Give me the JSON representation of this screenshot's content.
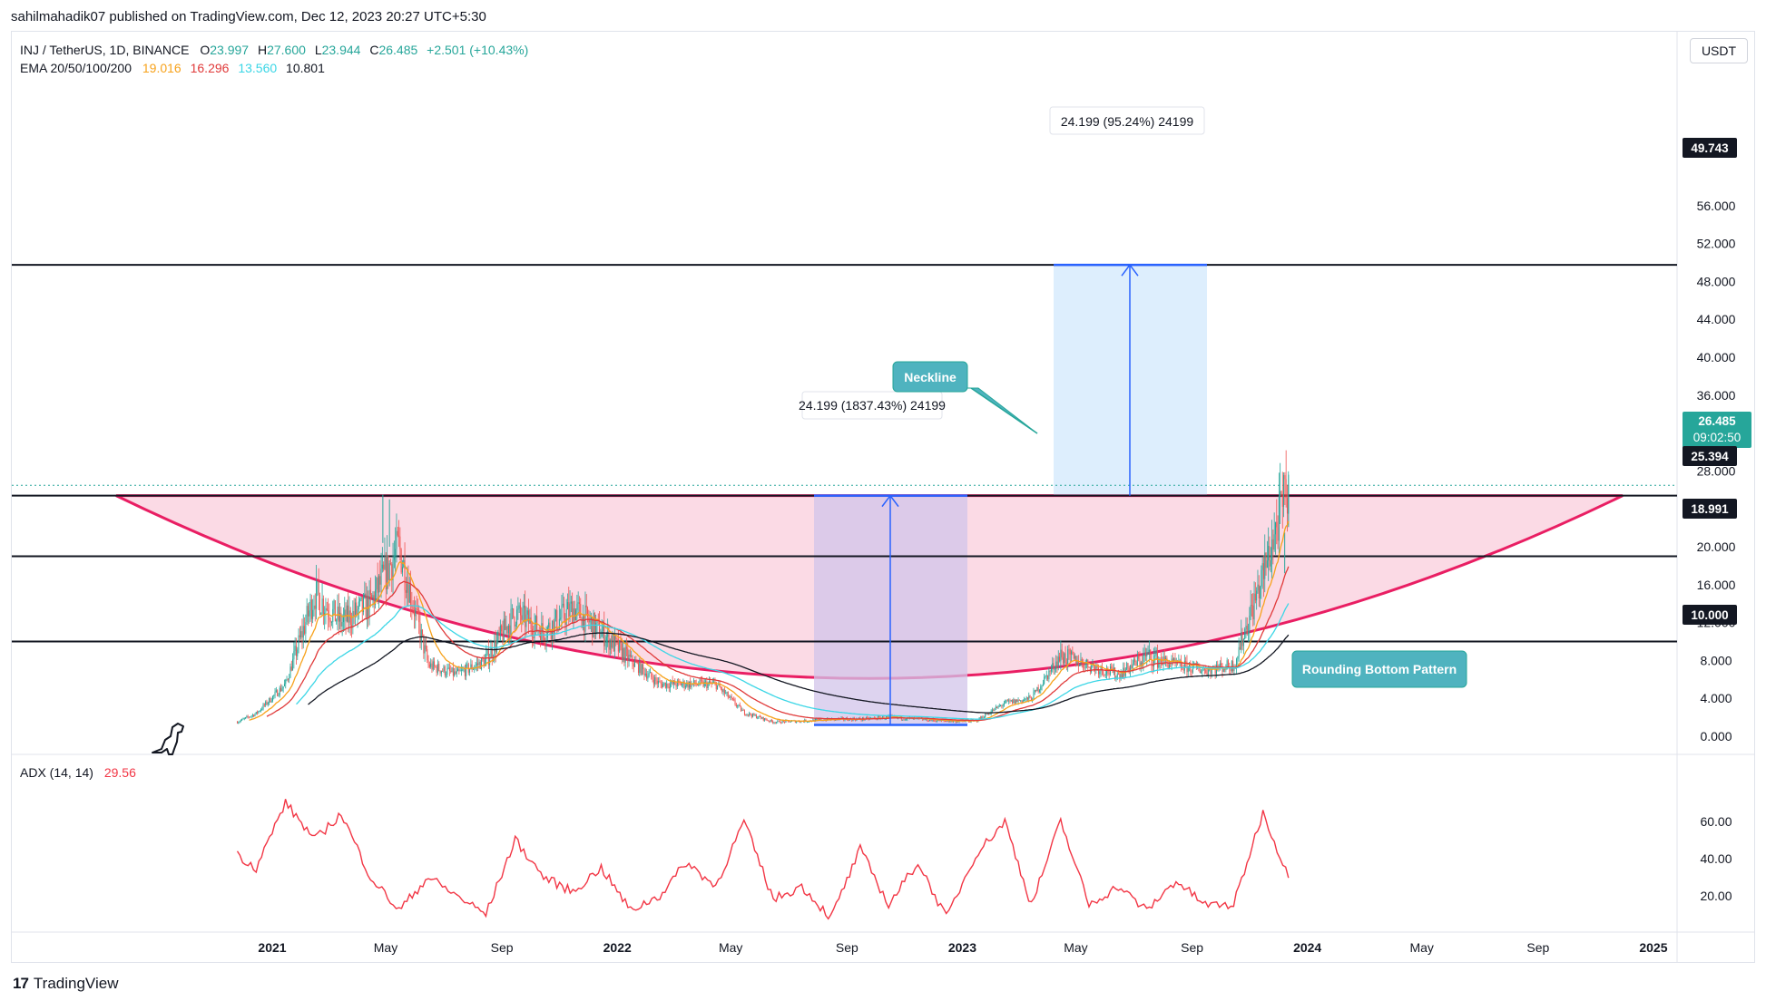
{
  "header": {
    "published_line": "sahilmahadik07 published on TradingView.com, Dec 12, 2023 20:27 UTC+5:30"
  },
  "legend": {
    "symbol": "INJ / TetherUS, 1D, BINANCE",
    "open_label": "O",
    "open": "23.997",
    "high_label": "H",
    "high": "27.600",
    "low_label": "L",
    "low": "23.944",
    "close_label": "C",
    "close": "26.485",
    "change": "+2.501 (+10.43%)",
    "ema_label": "EMA 20/50/100/200",
    "ema20": "19.016",
    "ema50": "16.296",
    "ema100": "13.560",
    "ema200": "10.801",
    "adx_label": "ADX (14, 14)",
    "adx_value": "29.56"
  },
  "currency_button": "USDT",
  "footer": {
    "brand": "TradingView"
  },
  "colors": {
    "bull": "#26a69a",
    "bear": "#ef5350",
    "ema20": "#f7a21b",
    "ema50": "#e03a3a",
    "ema100": "#3bd6e6",
    "ema200": "#131722",
    "adx": "#f23645",
    "pattern_fill": "#f8bbd0",
    "pattern_stroke": "#e91e63",
    "measure_fill_1": "#d1c4e9",
    "measure_fill_2": "#bbdefb",
    "measure_line": "#2962ff",
    "callout": "#4fb3bf"
  },
  "annotations": {
    "neckline": "Neckline",
    "rounding_bottom": "Rounding Bottom Pattern",
    "measure_1": "24.199 (1837.43%) 24199",
    "measure_2": "24.199 (95.24%) 24199"
  },
  "price_tags": {
    "last_price": "26.485",
    "countdown": "09:02:50",
    "level_1": "49.743",
    "level_2": "25.394",
    "level_3": "18.991",
    "level_4": "10.000"
  },
  "chart_data": [
    {
      "type": "candlestick",
      "title": "INJ / TetherUS, 1D, BINANCE",
      "y_axis_ticks": [
        "0.000",
        "4.000",
        "8.000",
        "12.000",
        "16.000",
        "20.000",
        "28.000",
        "32.000",
        "36.000",
        "40.000",
        "44.000",
        "48.000",
        "52.000",
        "56.000"
      ],
      "x_axis_ticks": [
        "2021",
        "May",
        "Sep",
        "2022",
        "May",
        "Sep",
        "2023",
        "May",
        "Sep",
        "2024",
        "May",
        "Sep",
        "2025"
      ],
      "ylim": [
        0,
        56
      ],
      "horizontal_levels": [
        49.743,
        25.394,
        18.991,
        10.0
      ],
      "price_path": [
        {
          "date": "2020-11",
          "price": 1.5
        },
        {
          "date": "2020-12",
          "price": 2.4
        },
        {
          "date": "2021-01",
          "price": 5.5
        },
        {
          "date": "2021-02",
          "price": 15.0
        },
        {
          "date": "2021-03",
          "price": 12.0
        },
        {
          "date": "2021-04",
          "price": 14.0
        },
        {
          "date": "2021-05",
          "price": 20.0
        },
        {
          "date": "2021-06",
          "price": 7.5
        },
        {
          "date": "2021-07",
          "price": 6.5
        },
        {
          "date": "2021-08",
          "price": 8.0
        },
        {
          "date": "2021-09",
          "price": 13.0
        },
        {
          "date": "2021-10",
          "price": 11.0
        },
        {
          "date": "2021-11",
          "price": 13.5
        },
        {
          "date": "2021-12",
          "price": 11.0
        },
        {
          "date": "2022-01",
          "price": 8.0
        },
        {
          "date": "2022-02",
          "price": 5.5
        },
        {
          "date": "2022-03",
          "price": 5.5
        },
        {
          "date": "2022-04",
          "price": 5.5
        },
        {
          "date": "2022-05",
          "price": 2.5
        },
        {
          "date": "2022-06",
          "price": 1.5
        },
        {
          "date": "2022-07",
          "price": 1.6
        },
        {
          "date": "2022-08",
          "price": 1.8
        },
        {
          "date": "2022-09",
          "price": 1.8
        },
        {
          "date": "2022-10",
          "price": 2.0
        },
        {
          "date": "2022-11",
          "price": 1.8
        },
        {
          "date": "2022-12",
          "price": 1.6
        },
        {
          "date": "2023-01",
          "price": 1.6
        },
        {
          "date": "2023-02",
          "price": 3.5
        },
        {
          "date": "2023-03",
          "price": 4.0
        },
        {
          "date": "2023-04",
          "price": 8.5
        },
        {
          "date": "2023-05",
          "price": 7.5
        },
        {
          "date": "2023-06",
          "price": 6.5
        },
        {
          "date": "2023-07",
          "price": 8.5
        },
        {
          "date": "2023-08",
          "price": 7.5
        },
        {
          "date": "2023-09",
          "price": 7.0
        },
        {
          "date": "2023-10",
          "price": 7.5
        },
        {
          "date": "2023-11",
          "price": 17.0
        },
        {
          "date": "2023-12",
          "price": 26.485
        }
      ],
      "ema_last": {
        "ema20": 19.016,
        "ema50": 16.296,
        "ema100": 13.56,
        "ema200": 10.801
      }
    },
    {
      "type": "line",
      "title": "ADX (14, 14)",
      "y_axis_ticks": [
        "20.00",
        "40.00",
        "60.00"
      ],
      "ylim": [
        0,
        72
      ],
      "series": [
        {
          "name": "ADX (14, 14)",
          "values": [
            {
              "date": "2020-11",
              "value": 42
            },
            {
              "date": "2020-12",
              "value": 35
            },
            {
              "date": "2021-01",
              "value": 70
            },
            {
              "date": "2021-02",
              "value": 50
            },
            {
              "date": "2021-03",
              "value": 64
            },
            {
              "date": "2021-04",
              "value": 30
            },
            {
              "date": "2021-05",
              "value": 12
            },
            {
              "date": "2021-06",
              "value": 30
            },
            {
              "date": "2021-07",
              "value": 20
            },
            {
              "date": "2021-08",
              "value": 10
            },
            {
              "date": "2021-09",
              "value": 50
            },
            {
              "date": "2021-10",
              "value": 30
            },
            {
              "date": "2021-11",
              "value": 22
            },
            {
              "date": "2021-12",
              "value": 35
            },
            {
              "date": "2022-01",
              "value": 12
            },
            {
              "date": "2022-02",
              "value": 20
            },
            {
              "date": "2022-03",
              "value": 38
            },
            {
              "date": "2022-04",
              "value": 25
            },
            {
              "date": "2022-05",
              "value": 60
            },
            {
              "date": "2022-06",
              "value": 18
            },
            {
              "date": "2022-07",
              "value": 25
            },
            {
              "date": "2022-08",
              "value": 8
            },
            {
              "date": "2022-09",
              "value": 45
            },
            {
              "date": "2022-10",
              "value": 15
            },
            {
              "date": "2022-11",
              "value": 38
            },
            {
              "date": "2022-12",
              "value": 8
            },
            {
              "date": "2023-01",
              "value": 42
            },
            {
              "date": "2023-02",
              "value": 60
            },
            {
              "date": "2023-03",
              "value": 15
            },
            {
              "date": "2023-04",
              "value": 60
            },
            {
              "date": "2023-05",
              "value": 15
            },
            {
              "date": "2023-06",
              "value": 25
            },
            {
              "date": "2023-07",
              "value": 12
            },
            {
              "date": "2023-08",
              "value": 28
            },
            {
              "date": "2023-09",
              "value": 15
            },
            {
              "date": "2023-10",
              "value": 15
            },
            {
              "date": "2023-11",
              "value": 65
            },
            {
              "date": "2023-12",
              "value": 29.56
            }
          ]
        }
      ]
    }
  ]
}
